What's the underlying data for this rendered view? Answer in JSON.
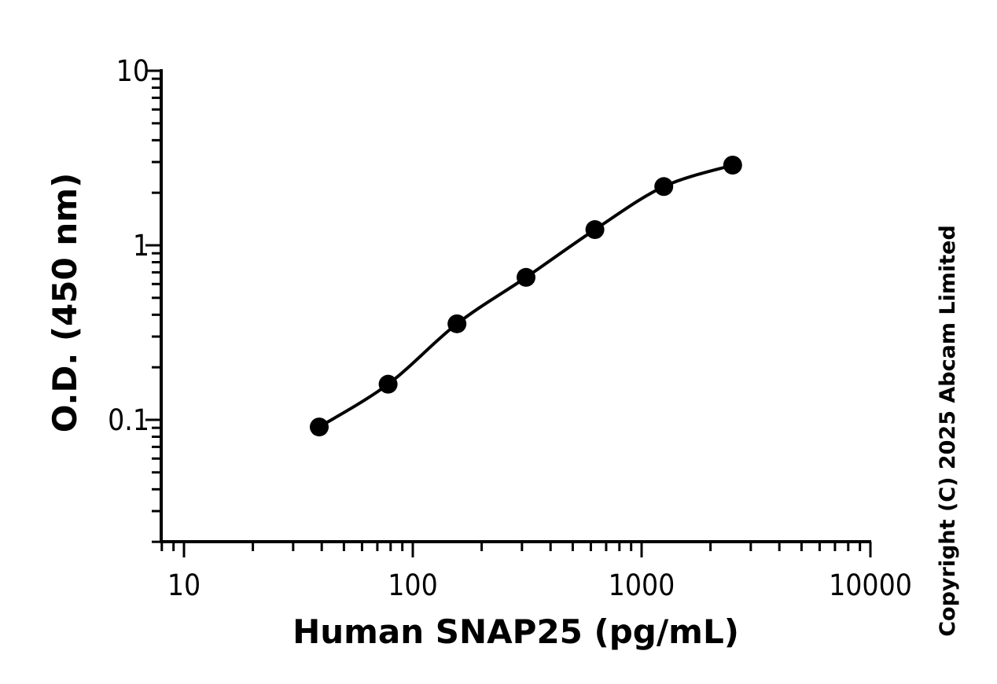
{
  "chart_data": {
    "type": "scatter",
    "xscale": "log",
    "yscale": "log",
    "xlim": [
      8,
      10000
    ],
    "ylim": [
      0.02,
      10
    ],
    "xticks": [
      {
        "value": 10,
        "label": "10"
      },
      {
        "value": 100,
        "label": "100"
      },
      {
        "value": 1000,
        "label": "1000"
      },
      {
        "value": 10000,
        "label": "10000"
      }
    ],
    "yticks": [
      {
        "value": 0.1,
        "label": "0.1"
      },
      {
        "value": 1,
        "label": "1"
      },
      {
        "value": 10,
        "label": "10"
      }
    ],
    "xlabel": "Human SNAP25 (pg/mL)",
    "ylabel": "O.D. (450 nm)",
    "series": [
      {
        "points": [
          {
            "x": 39,
            "y": 0.091
          },
          {
            "x": 78,
            "y": 0.16
          },
          {
            "x": 156,
            "y": 0.355
          },
          {
            "x": 312.5,
            "y": 0.655
          },
          {
            "x": 625,
            "y": 1.23
          },
          {
            "x": 1250,
            "y": 2.17
          },
          {
            "x": 2500,
            "y": 2.88
          }
        ],
        "fit": "4PL curve",
        "color": "#000000"
      }
    ],
    "grid": false,
    "legend": "none"
  },
  "copyright": "Copyright (C) 2025 Abcam Limited"
}
